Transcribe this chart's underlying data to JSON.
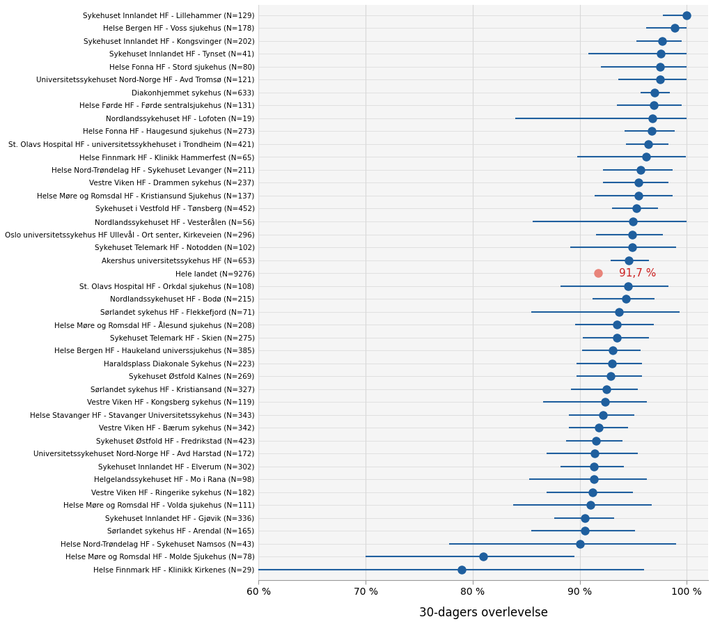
{
  "hospitals": [
    "Sykehuset Innlandet HF - Lillehammer (N=129)",
    "Helse Bergen HF - Voss sjukehus (N=178)",
    "Sykehuset Innlandet HF - Kongsvinger (N=202)",
    "Sykehuset Innlandet HF - Tynset (N=41)",
    "Helse Fonna HF - Stord sjukehus (N=80)",
    "Universitetssykehuset Nord-Norge HF - Avd Tromsø (N=121)",
    "Diakonhjemmet sykehus (N=633)",
    "Helse Førde HF - Førde sentralsjukehus (N=131)",
    "Nordlandssykehuset HF - Lofoten (N=19)",
    "Helse Fonna HF - Haugesund sjukehus (N=273)",
    "St. Olavs Hospital HF - universitetssykhehuset i Trondheim (N=421)",
    "Helse Finnmark HF - Klinikk Hammerfest (N=65)",
    "Helse Nord-Trøndelag HF - Sykehuset Levanger (N=211)",
    "Vestre Viken HF - Drammen sykehus (N=237)",
    "Helse Møre og Romsdal HF - Kristiansund Sjukehus (N=137)",
    "Sykehuset i Vestfold HF - Tønsberg (N=452)",
    "Nordlandssykehuset HF - Vesterålen (N=56)",
    "Oslo universitetssykehus HF Ullevål - Ort senter, Kirkeveien (N=296)",
    "Sykehuset Telemark HF - Notodden (N=102)",
    "Akershus universitetssykehus HF (N=653)",
    "Hele landet (N=9276)",
    "St. Olavs Hospital HF - Orkdal sjukehus (N=108)",
    "Nordlandssykehuset HF - Bodø (N=215)",
    "Sørlandet sykehus HF - Flekkefjord (N=71)",
    "Helse Møre og Romsdal HF - Ålesund sjukehus (N=208)",
    "Sykehuset Telemark HF - Skien (N=275)",
    "Helse Bergen HF - Haukeland universsjukehus (N=385)",
    "Haraldsplass Diakonale Sykehus (N=223)",
    "Sykehuset Østfold Kalnes (N=269)",
    "Sørlandet sykehus HF - Kristiansand (N=327)",
    "Vestre Viken HF - Kongsberg sykehus (N=119)",
    "Helse Stavanger HF - Stavanger Universitetssykehus (N=343)",
    "Vestre Viken HF - Bærum sykehus (N=342)",
    "Sykehuset Østfold HF - Fredrikstad (N=423)",
    "Universitetssykehuset Nord-Norge HF - Avd Harstad (N=172)",
    "Sykehuset Innlandet HF - Elverum (N=302)",
    "Helgelandssykehuset HF - Mo i Rana (N=98)",
    "Vestre Viken HF - Ringerike sykehus (N=182)",
    "Helse Møre og Romsdal HF - Volda sjukehus (N=111)",
    "Sykehuset Innlandet HF - Gjøvik (N=336)",
    "Sørlandet sykehus HF - Arendal (N=165)",
    "Helse Nord-Trøndelag HF - Sykehuset Namsos (N=43)",
    "Helse Møre og Romsdal HF - Molde Sjukehus (N=78)",
    "Helse Finnmark HF - Klinikk Kirkenes (N=29)"
  ],
  "values": [
    100.0,
    98.9,
    97.7,
    97.6,
    97.5,
    97.5,
    97.0,
    96.9,
    96.8,
    96.7,
    96.4,
    96.2,
    95.7,
    95.5,
    95.5,
    95.3,
    95.0,
    94.9,
    94.9,
    94.6,
    91.7,
    94.5,
    94.3,
    93.7,
    93.5,
    93.5,
    93.1,
    93.0,
    92.9,
    92.5,
    92.4,
    92.2,
    91.8,
    91.5,
    91.4,
    91.3,
    91.3,
    91.2,
    91.0,
    90.5,
    90.5,
    90.0,
    81.0,
    79.0
  ],
  "ci_low": [
    97.8,
    96.2,
    95.3,
    90.8,
    92.0,
    93.6,
    95.7,
    93.5,
    84.0,
    94.2,
    94.3,
    89.8,
    92.2,
    92.2,
    91.4,
    93.0,
    85.6,
    91.5,
    89.1,
    92.9,
    null,
    88.2,
    91.2,
    85.5,
    89.6,
    90.3,
    90.2,
    89.7,
    89.7,
    89.2,
    86.6,
    89.0,
    89.0,
    88.7,
    86.9,
    88.2,
    85.3,
    86.9,
    83.8,
    87.6,
    85.5,
    77.8,
    70.0,
    60.0
  ],
  "ci_high": [
    100.0,
    100.0,
    99.5,
    100.0,
    100.0,
    100.0,
    98.4,
    99.5,
    100.0,
    98.9,
    98.3,
    99.9,
    98.7,
    98.3,
    98.7,
    97.3,
    100.0,
    97.8,
    99.0,
    96.5,
    null,
    98.3,
    97.0,
    99.3,
    96.9,
    96.5,
    95.7,
    95.8,
    95.8,
    95.4,
    96.3,
    95.1,
    94.5,
    94.0,
    95.4,
    94.1,
    96.3,
    95.0,
    96.7,
    93.2,
    95.2,
    99.0,
    89.5,
    96.0
  ],
  "nationale_value": 91.7,
  "nationale_idx": 20,
  "dot_color": "#1f5f9e",
  "nationale_dot_color": "#e8847a",
  "nationale_label_color": "#cc2222",
  "line_color": "#1f5f9e",
  "bg_color": "#ffffff",
  "plot_bg_color": "#f5f5f5",
  "grid_color": "#d8d8d8",
  "xlabel": "30-dagers overlevelse",
  "xlim_low": 60,
  "xlim_high": 102,
  "xticks": [
    60,
    70,
    80,
    90,
    100
  ],
  "xtick_labels": [
    "60 %",
    "70 %",
    "80 %",
    "90 %",
    "100 %"
  ],
  "nationale_annotation": "91,7 %"
}
